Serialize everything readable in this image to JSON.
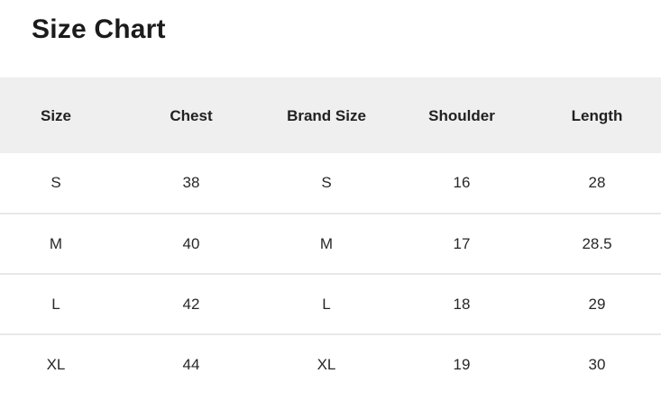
{
  "page": {
    "title": "Size Chart"
  },
  "size_chart": {
    "columns": [
      {
        "label": "Size"
      },
      {
        "label": "Chest"
      },
      {
        "label": "Brand Size"
      },
      {
        "label": "Shoulder"
      },
      {
        "label": "Length"
      }
    ],
    "rows": [
      {
        "size": "S",
        "chest": "38",
        "brand_size": "S",
        "shoulder": "16",
        "length": "28"
      },
      {
        "size": "M",
        "chest": "40",
        "brand_size": "M",
        "shoulder": "17",
        "length": "28.5"
      },
      {
        "size": "L",
        "chest": "42",
        "brand_size": "L",
        "shoulder": "18",
        "length": "29"
      },
      {
        "size": "XL",
        "chest": "44",
        "brand_size": "XL",
        "shoulder": "19",
        "length": "30"
      }
    ]
  },
  "colors": {
    "page_bg": "#ffffff",
    "title_text": "#1b1b1b",
    "header_bg": "#efefef",
    "header_text": "#212121",
    "cell_text": "#272727",
    "divider": "#e8e8e8",
    "row_bg": "#ffffff",
    "table_top_border": "#ececec"
  }
}
